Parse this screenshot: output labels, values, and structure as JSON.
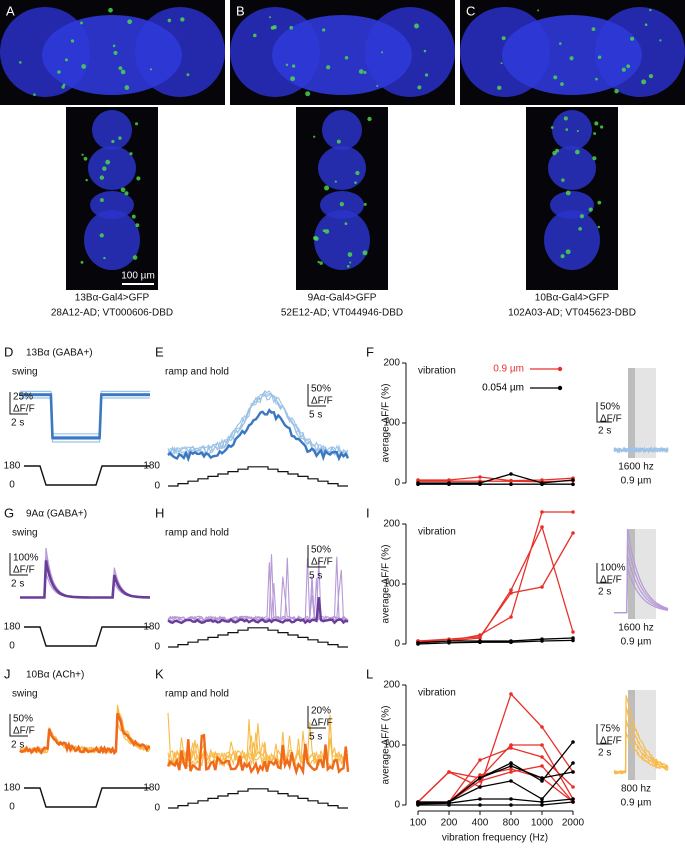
{
  "images": [
    {
      "label": "A",
      "caption": [
        "13Bα-Gal4>GFP",
        "28A12-AD; VT000606-DBD"
      ],
      "scale_bar": "100 µm"
    },
    {
      "label": "B",
      "caption": [
        "9Aα-Gal4>GFP",
        "52E12-AD; VT044946-DBD"
      ]
    },
    {
      "label": "C",
      "caption": [
        "10Bα-Gal4>GFP",
        "102A03-AD; VT045623-DBD"
      ]
    }
  ],
  "rows": [
    {
      "trace_colors": [
        "#9cc3e6",
        "#3a78c2"
      ],
      "swing": {
        "label": "D",
        "title": "13Bα (GABA+)",
        "name": "swing",
        "scale": "25%",
        "unit": "ΔF/F",
        "time": "2 s",
        "stim_max": "180",
        "stim_min": "0"
      },
      "ramp": {
        "label": "E",
        "name": "ramp and hold",
        "scale": "50%",
        "unit": "ΔF/F",
        "time": "5 s",
        "stim_max": "180",
        "stim_min": "0"
      },
      "chart": {
        "label": "F",
        "type": "line",
        "title": "vibration",
        "y_label": "average ΔF/F (%)",
        "ylim": [
          0,
          200
        ],
        "yticks": [
          0,
          100,
          200
        ],
        "legend": [
          {
            "label": "0.9 µm",
            "color": "#e8302a"
          },
          {
            "label": "0.054 µm",
            "color": "#000000"
          }
        ],
        "series": [
          {
            "color": "#e8302a",
            "values": [
              5,
              5,
              10,
              4,
              5,
              8
            ]
          },
          {
            "color": "#e8302a",
            "values": [
              3,
              3,
              3,
              3,
              2,
              4
            ]
          },
          {
            "color": "#000000",
            "values": [
              0,
              0,
              0,
              15,
              0,
              5
            ]
          },
          {
            "color": "#000000",
            "values": [
              -2,
              -2,
              -2,
              -2,
              -2,
              -2
            ]
          }
        ]
      },
      "inset": {
        "scale": "50%",
        "unit": "ΔF/F",
        "time": "2 s",
        "freq": "1600 hz",
        "amp": "0.9 µm"
      }
    },
    {
      "trace_colors": [
        "#b79ad6",
        "#6a3d9a"
      ],
      "swing": {
        "label": "G",
        "title": "9Aα (GABA+)",
        "name": "swing",
        "scale": "100%",
        "unit": "ΔF/F",
        "time": "2 s",
        "stim_max": "180",
        "stim_min": "0"
      },
      "ramp": {
        "label": "H",
        "name": "ramp and hold",
        "scale": "50%",
        "unit": "ΔF/F",
        "time": "5 s",
        "stim_max": "180",
        "stim_min": "0"
      },
      "chart": {
        "label": "I",
        "type": "line",
        "title": "vibration",
        "y_label": "average ΔF/F (%)",
        "ylim": [
          0,
          200
        ],
        "yticks": [
          0,
          100,
          200
        ],
        "series": [
          {
            "color": "#e8302a",
            "values": [
              5,
              5,
              15,
              45,
              220,
              220
            ]
          },
          {
            "color": "#e8302a",
            "values": [
              3,
              5,
              10,
              90,
              195,
              20
            ]
          },
          {
            "color": "#e8302a",
            "values": [
              5,
              8,
              12,
              85,
              95,
              185
            ]
          },
          {
            "color": "#000000",
            "values": [
              2,
              5,
              5,
              5,
              8,
              10
            ]
          },
          {
            "color": "#000000",
            "values": [
              0,
              2,
              3,
              3,
              5,
              6
            ]
          }
        ]
      },
      "inset": {
        "scale": "100%",
        "unit": "ΔF/F",
        "time": "2 s",
        "freq": "1600 hz",
        "amp": "0.9 µm"
      }
    },
    {
      "trace_colors": [
        "#f8bb4a",
        "#f06a1c"
      ],
      "swing": {
        "label": "J",
        "title": "10Bα (ACh+)",
        "name": "swing",
        "scale": "50%",
        "unit": "ΔF/F",
        "time": "2 s",
        "stim_max": "180",
        "stim_min": "0"
      },
      "ramp": {
        "label": "K",
        "name": "ramp and hold",
        "scale": "20%",
        "unit": "ΔF/F",
        "time": "5 s",
        "stim_max": "180",
        "stim_min": "0"
      },
      "chart": {
        "label": "L",
        "type": "line",
        "title": "vibration",
        "y_label": "average ΔF/F (%)",
        "x_label": "vibration frequency (Hz)",
        "categories": [
          "100",
          "200",
          "400",
          "800",
          "1000",
          "2000"
        ],
        "ylim": [
          0,
          200
        ],
        "yticks": [
          0,
          100,
          200
        ],
        "series": [
          {
            "color": "#e8302a",
            "values": [
              5,
              55,
              30,
              185,
              130,
              55
            ]
          },
          {
            "color": "#e8302a",
            "values": [
              5,
              55,
              45,
              100,
              100,
              10
            ]
          },
          {
            "color": "#e8302a",
            "values": [
              3,
              5,
              75,
              95,
              80,
              30
            ]
          },
          {
            "color": "#e8302a",
            "values": [
              5,
              5,
              40,
              55,
              65,
              5
            ]
          },
          {
            "color": "#e8302a",
            "values": [
              2,
              5,
              50,
              60,
              45,
              5
            ]
          },
          {
            "color": "#000000",
            "values": [
              5,
              5,
              45,
              70,
              40,
              105
            ]
          },
          {
            "color": "#000000",
            "values": [
              3,
              5,
              45,
              65,
              45,
              55
            ]
          },
          {
            "color": "#000000",
            "values": [
              2,
              5,
              30,
              40,
              10,
              70
            ]
          },
          {
            "color": "#000000",
            "values": [
              2,
              3,
              10,
              10,
              5,
              10
            ]
          },
          {
            "color": "#000000",
            "values": [
              0,
              0,
              0,
              0,
              0,
              5
            ]
          }
        ]
      },
      "inset": {
        "scale": "75%",
        "unit": "ΔF/F",
        "time": "2 s",
        "freq": "800 hz",
        "amp": "0.9 µm"
      }
    }
  ]
}
